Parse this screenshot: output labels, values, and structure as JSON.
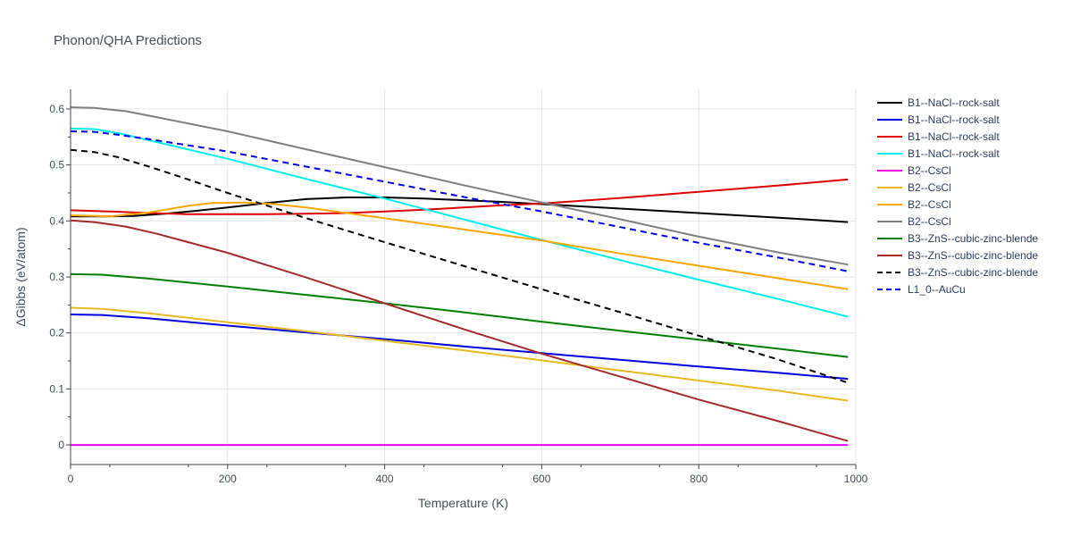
{
  "chart_data": {
    "type": "line",
    "title": "Phonon/QHA Predictions",
    "xlabel": "Temperature (K)",
    "ylabel": "ΔGibbs (eV/atom)",
    "xlim": [
      0,
      1000
    ],
    "ylim": [
      -0.035,
      0.635
    ],
    "x_ticks": [
      0,
      200,
      400,
      600,
      800,
      1000
    ],
    "y_ticks": [
      0,
      0.1,
      0.2,
      0.3,
      0.4,
      0.5,
      0.6
    ],
    "grid": true,
    "legend_position": "right",
    "series": [
      {
        "name": "B1--NaCl--rock-salt",
        "color": "#000000",
        "dash": "solid",
        "x": [
          0,
          40,
          80,
          120,
          160,
          200,
          250,
          300,
          350,
          400,
          450,
          500,
          550,
          600,
          700,
          800,
          900,
          990
        ],
        "y": [
          0.408,
          0.408,
          0.409,
          0.413,
          0.418,
          0.424,
          0.432,
          0.439,
          0.442,
          0.442,
          0.44,
          0.437,
          0.434,
          0.43,
          0.422,
          0.414,
          0.406,
          0.398
        ]
      },
      {
        "name": "B1--NaCl--rock-salt",
        "color": "#0000dd",
        "dash": "solid",
        "x": [
          0,
          40,
          100,
          200,
          300,
          400,
          500,
          600,
          700,
          800,
          900,
          990
        ],
        "y": [
          0.233,
          0.232,
          0.226,
          0.213,
          0.201,
          0.189,
          0.176,
          0.164,
          0.152,
          0.14,
          0.129,
          0.118
        ]
      },
      {
        "name": "B1--NaCl--rock-salt",
        "color": "#dd0000",
        "dash": "solid",
        "x": [
          0,
          50,
          100,
          150,
          200,
          250,
          300,
          350,
          400,
          450,
          500,
          550,
          600,
          700,
          800,
          900,
          990
        ],
        "y": [
          0.419,
          0.417,
          0.414,
          0.412,
          0.412,
          0.412,
          0.413,
          0.414,
          0.417,
          0.42,
          0.424,
          0.428,
          0.431,
          0.441,
          0.452,
          0.463,
          0.474
        ]
      },
      {
        "name": "B1--NaCl--rock-salt",
        "color": "#00eeee",
        "dash": "solid",
        "x": [
          0,
          30,
          60,
          100,
          200,
          300,
          400,
          500,
          600,
          700,
          800,
          900,
          990
        ],
        "y": [
          0.565,
          0.564,
          0.557,
          0.544,
          0.511,
          0.475,
          0.44,
          0.403,
          0.366,
          0.33,
          0.295,
          0.261,
          0.229
        ]
      },
      {
        "name": "B2--CsCl",
        "color": "#ee00ee",
        "dash": "solid",
        "x": [
          0,
          990
        ],
        "y": [
          0.0,
          0.0
        ]
      },
      {
        "name": "B2--CsCl",
        "color": "#e8b923",
        "dash": "solid",
        "x": [
          0,
          40,
          100,
          200,
          300,
          400,
          500,
          600,
          700,
          800,
          900,
          990
        ],
        "y": [
          0.245,
          0.243,
          0.235,
          0.219,
          0.203,
          0.186,
          0.169,
          0.151,
          0.133,
          0.115,
          0.097,
          0.079
        ]
      },
      {
        "name": "B2--CsCl",
        "color": "#ffa500",
        "dash": "solid",
        "x": [
          0,
          50,
          100,
          150,
          180,
          220,
          260,
          300,
          400,
          500,
          600,
          700,
          800,
          900,
          990
        ],
        "y": [
          0.41,
          0.408,
          0.415,
          0.427,
          0.432,
          0.433,
          0.43,
          0.424,
          0.405,
          0.385,
          0.365,
          0.342,
          0.32,
          0.298,
          0.278
        ]
      },
      {
        "name": "B2--CsCl",
        "color": "#808080",
        "dash": "solid",
        "x": [
          0,
          30,
          70,
          100,
          200,
          300,
          400,
          500,
          600,
          700,
          800,
          900,
          990
        ],
        "y": [
          0.603,
          0.602,
          0.596,
          0.588,
          0.56,
          0.528,
          0.496,
          0.464,
          0.433,
          0.403,
          0.372,
          0.344,
          0.322
        ]
      },
      {
        "name": "B3--ZnS--cubic-zinc-blende",
        "color": "#008000",
        "dash": "solid",
        "x": [
          0,
          40,
          100,
          200,
          300,
          400,
          500,
          600,
          700,
          800,
          900,
          990
        ],
        "y": [
          0.305,
          0.304,
          0.297,
          0.283,
          0.268,
          0.253,
          0.237,
          0.22,
          0.204,
          0.188,
          0.172,
          0.157
        ]
      },
      {
        "name": "B3--ZnS--cubic-zinc-blende",
        "color": "#a52a2a",
        "dash": "solid",
        "x": [
          0,
          30,
          70,
          110,
          150,
          200,
          250,
          300,
          350,
          400,
          450,
          500,
          600,
          700,
          800,
          900,
          990
        ],
        "y": [
          0.401,
          0.398,
          0.39,
          0.377,
          0.362,
          0.343,
          0.321,
          0.299,
          0.276,
          0.253,
          0.23,
          0.207,
          0.163,
          0.122,
          0.081,
          0.043,
          0.007
        ]
      },
      {
        "name": "B3--ZnS--cubic-zinc-blende",
        "color": "#000000",
        "dash": "dash",
        "x": [
          0,
          30,
          60,
          100,
          150,
          200,
          300,
          400,
          500,
          600,
          700,
          800,
          900,
          990
        ],
        "y": [
          0.527,
          0.523,
          0.514,
          0.497,
          0.474,
          0.45,
          0.405,
          0.362,
          0.32,
          0.278,
          0.237,
          0.195,
          0.153,
          0.111
        ]
      },
      {
        "name": "L1_0--AuCu",
        "color": "#0000ee",
        "dash": "dash",
        "x": [
          0,
          30,
          60,
          100,
          200,
          300,
          400,
          500,
          600,
          700,
          800,
          900,
          990
        ],
        "y": [
          0.56,
          0.559,
          0.554,
          0.546,
          0.524,
          0.497,
          0.47,
          0.443,
          0.417,
          0.389,
          0.361,
          0.335,
          0.31
        ]
      }
    ]
  }
}
